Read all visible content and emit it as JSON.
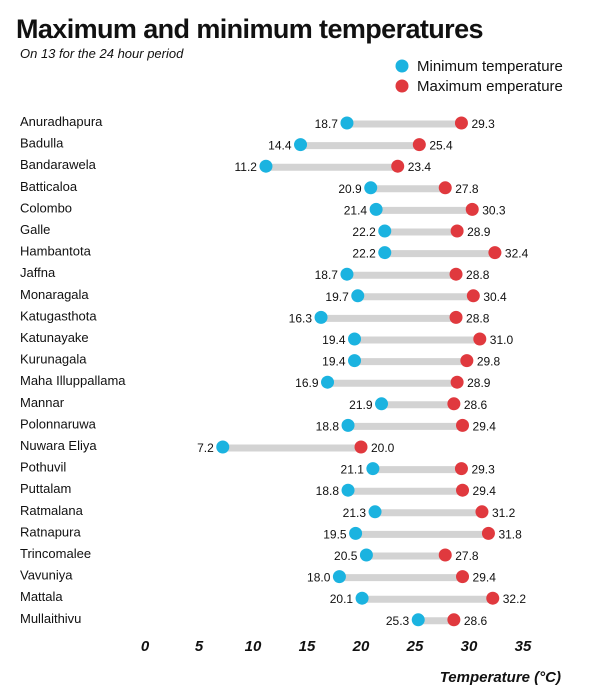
{
  "chart_data": {
    "type": "dumbbell",
    "title": "Maximum and minimum temperatures",
    "subtitle": "On 13  for the 24 hour period",
    "xlabel": "Temperature (°C)",
    "xlim": [
      0,
      35
    ],
    "xticks": [
      0,
      5,
      10,
      15,
      20,
      25,
      30,
      35
    ],
    "colors": {
      "min": "#1bb3e0",
      "max": "#e0393e",
      "bar": "#d3d3d3"
    },
    "series": [
      {
        "key": "min",
        "name": "Minimum temperature"
      },
      {
        "key": "max",
        "name": "Maximum emperature"
      }
    ],
    "stations": [
      {
        "name": "Anuradhapura",
        "min": 18.7,
        "max": 29.3,
        "min_label": "18.7",
        "max_label": "29.3"
      },
      {
        "name": "Badulla",
        "min": 14.4,
        "max": 25.4,
        "min_label": "14.4",
        "max_label": "25.4"
      },
      {
        "name": "Bandarawela",
        "min": 11.2,
        "max": 23.4,
        "min_label": "11.2",
        "max_label": "23.4"
      },
      {
        "name": "Batticaloa",
        "min": 20.9,
        "max": 27.8,
        "min_label": "20.9",
        "max_label": "27.8"
      },
      {
        "name": "Colombo",
        "min": 21.4,
        "max": 30.3,
        "min_label": "21.4",
        "max_label": "30.3"
      },
      {
        "name": "Galle",
        "min": 22.2,
        "max": 28.9,
        "min_label": "22.2",
        "max_label": "28.9"
      },
      {
        "name": "Hambantota",
        "min": 22.2,
        "max": 32.4,
        "min_label": "22.2",
        "max_label": "32.4"
      },
      {
        "name": "Jaffna",
        "min": 18.7,
        "max": 28.8,
        "min_label": "18.7",
        "max_label": "28.8"
      },
      {
        "name": "Monaragala",
        "min": 19.7,
        "max": 30.4,
        "min_label": "19.7",
        "max_label": "30.4"
      },
      {
        "name": "Katugasthota",
        "min": 16.3,
        "max": 28.8,
        "min_label": "16.3",
        "max_label": "28.8"
      },
      {
        "name": "Katunayake",
        "min": 19.4,
        "max": 31.0,
        "min_label": "19.4",
        "max_label": "31.0"
      },
      {
        "name": "Kurunagala",
        "min": 19.4,
        "max": 29.8,
        "min_label": "19.4",
        "max_label": "29.8"
      },
      {
        "name": "Maha Illuppallama",
        "min": 16.9,
        "max": 28.9,
        "min_label": "16.9",
        "max_label": "28.9"
      },
      {
        "name": "Mannar",
        "min": 21.9,
        "max": 28.6,
        "min_label": "21.9",
        "max_label": "28.6"
      },
      {
        "name": "Polonnaruwa",
        "min": 18.8,
        "max": 29.4,
        "min_label": "18.8",
        "max_label": "29.4"
      },
      {
        "name": "Nuwara Eliya",
        "min": 7.2,
        "max": 20.0,
        "min_label": "7.2",
        "max_label": "20.0"
      },
      {
        "name": "Pothuvil",
        "min": 21.1,
        "max": 29.3,
        "min_label": "21.1",
        "max_label": "29.3"
      },
      {
        "name": "Puttalam",
        "min": 18.8,
        "max": 29.4,
        "min_label": "18.8",
        "max_label": "29.4"
      },
      {
        "name": "Ratmalana",
        "min": 21.3,
        "max": 31.2,
        "min_label": "21.3",
        "max_label": "31.2"
      },
      {
        "name": "Ratnapura",
        "min": 19.5,
        "max": 31.8,
        "min_label": "19.5",
        "max_label": "31.8"
      },
      {
        "name": "Trincomalee",
        "min": 20.5,
        "max": 27.8,
        "min_label": "20.5",
        "max_label": "27.8"
      },
      {
        "name": "Vavuniya",
        "min": 18.0,
        "max": 29.4,
        "min_label": "18.0",
        "max_label": "29.4"
      },
      {
        "name": "Mattala",
        "min": 20.1,
        "max": 32.2,
        "min_label": "20.1",
        "max_label": "32.2"
      },
      {
        "name": "Mullaithivu",
        "min": 25.3,
        "max": 28.6,
        "min_label": "25.3",
        "max_label": "28.6"
      }
    ]
  }
}
